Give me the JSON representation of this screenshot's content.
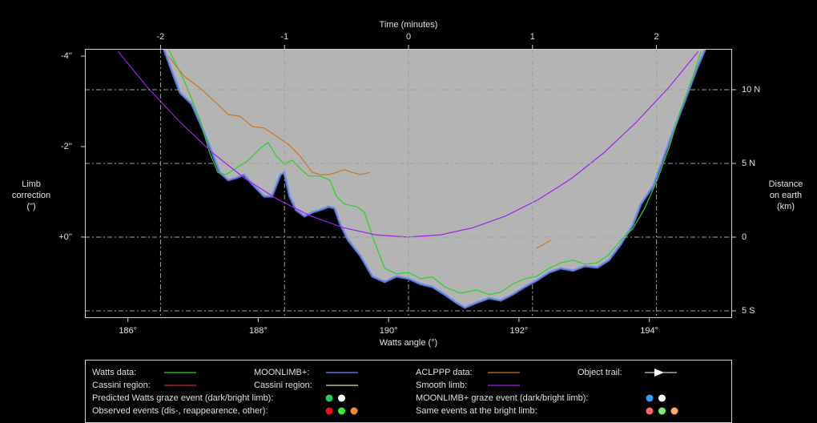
{
  "chart_data": {
    "type": "line",
    "xlabel": "Watts angle (°)",
    "x2label": "Time (minutes)",
    "ylabel": [
      "Limb",
      "correction",
      "(\")"
    ],
    "y2label": [
      "Distance",
      "on earth",
      "(km)"
    ],
    "xlim": [
      185.34,
      195.27
    ],
    "xticks": [
      {
        "value": 186,
        "label": "186°"
      },
      {
        "value": 188,
        "label": "188°"
      },
      {
        "value": 190,
        "label": "190°"
      },
      {
        "value": 192,
        "label": "192°"
      },
      {
        "value": 194,
        "label": "194°"
      }
    ],
    "x2lim": [
      -2.61,
      2.61
    ],
    "x2ticks": [
      -2,
      -1,
      0,
      1,
      2
    ],
    "ylim": [
      1.79,
      -4.16
    ],
    "yticks": [
      {
        "value": -4,
        "label": "-4''"
      },
      {
        "value": -2,
        "label": "-2''"
      },
      {
        "value": 0,
        "label": "+0''"
      }
    ],
    "y2lim": [
      -5.49,
      12.77
    ],
    "y2ticks": [
      {
        "value": 10,
        "label": "10 N"
      },
      {
        "value": 5,
        "label": "5 N"
      },
      0,
      {
        "value": -5,
        "label": "5 S"
      }
    ],
    "grid": true,
    "series": [
      {
        "name": "Watts data:",
        "color": "#28d228",
        "x": [
          186.62,
          186.86,
          187.11,
          187.25,
          187.38,
          187.5,
          187.66,
          187.85,
          188.03,
          188.15,
          188.28,
          188.4,
          188.52,
          188.64,
          188.77,
          188.95,
          189.1,
          189.2,
          189.32,
          189.51,
          189.63,
          189.75,
          189.94,
          190.12,
          190.31,
          190.49,
          190.67,
          190.86,
          191.1,
          191.35,
          191.54,
          191.72,
          191.9,
          192.09,
          192.27,
          192.46,
          192.64,
          192.83,
          193.01,
          193.2,
          193.38,
          193.56,
          193.75,
          193.93,
          194.12,
          194.3,
          194.49,
          194.67,
          194.79
        ],
        "values": [
          -4.16,
          -3.47,
          -2.58,
          -1.88,
          -1.43,
          -1.38,
          -1.52,
          -1.7,
          -1.96,
          -2.09,
          -1.79,
          -1.61,
          -1.7,
          -1.52,
          -1.35,
          -1.35,
          -1.26,
          -0.9,
          -0.73,
          -0.67,
          -0.55,
          -0.02,
          0.69,
          0.81,
          0.78,
          0.92,
          0.88,
          1.1,
          1.24,
          1.17,
          1.27,
          1.22,
          1.04,
          0.92,
          0.87,
          0.69,
          0.57,
          0.51,
          0.6,
          0.57,
          0.39,
          0.07,
          -0.19,
          -0.64,
          -1.26,
          -1.96,
          -2.85,
          -3.56,
          -4.09
        ]
      },
      {
        "name": "MOONLIMB+:",
        "color": "#6a8cff",
        "fill": "#b4b4b4",
        "x": [
          186.55,
          186.68,
          186.8,
          186.98,
          187.17,
          187.29,
          187.41,
          187.54,
          187.66,
          187.78,
          187.91,
          188.09,
          188.21,
          188.34,
          188.4,
          188.48,
          188.58,
          188.71,
          188.83,
          188.95,
          189.08,
          189.17,
          189.26,
          189.38,
          189.57,
          189.75,
          189.94,
          190.12,
          190.31,
          190.49,
          190.67,
          190.86,
          191.04,
          191.17,
          191.35,
          191.54,
          191.72,
          191.9,
          192.09,
          192.27,
          192.46,
          192.64,
          192.83,
          193.01,
          193.2,
          193.38,
          193.56,
          193.75,
          193.87,
          194.06,
          194.18,
          194.36,
          194.55,
          194.73,
          194.86
        ],
        "values": [
          -4.16,
          -3.65,
          -3.19,
          -2.94,
          -2.32,
          -1.88,
          -1.43,
          -1.26,
          -1.31,
          -1.38,
          -1.17,
          -0.9,
          -0.9,
          -1.38,
          -1.43,
          -0.9,
          -0.6,
          -0.46,
          -0.55,
          -0.6,
          -0.67,
          -0.64,
          -0.28,
          0.07,
          0.42,
          0.87,
          0.99,
          0.87,
          0.92,
          1.04,
          1.1,
          1.27,
          1.45,
          1.56,
          1.45,
          1.35,
          1.4,
          1.27,
          1.1,
          0.96,
          0.78,
          0.69,
          0.74,
          0.64,
          0.67,
          0.51,
          0.16,
          -0.28,
          -0.73,
          -1.13,
          -1.61,
          -2.32,
          -3.03,
          -3.73,
          -4.16
        ]
      },
      {
        "name": "ACLPPP data:",
        "color": "#c87820",
        "x": [
          186.62,
          186.86,
          187.11,
          187.35,
          187.54,
          187.72,
          187.91,
          188.09,
          188.28,
          188.46,
          188.64,
          188.83,
          188.95,
          189.08,
          189.2,
          189.32,
          189.44,
          189.57,
          189.71,
          null,
          192.27,
          192.49
        ],
        "values": [
          -4.0,
          -3.56,
          -3.29,
          -2.97,
          -2.71,
          -2.67,
          -2.44,
          -2.41,
          -2.23,
          -2.05,
          -1.79,
          -1.43,
          -1.38,
          -1.38,
          -1.43,
          -1.49,
          -1.43,
          -1.38,
          -1.43,
          null,
          0.25,
          0.07
        ]
      },
      {
        "name": "Smooth limb:",
        "color": "#a020f0",
        "x": [
          185.85,
          186.3,
          186.8,
          187.3,
          187.8,
          188.3,
          188.8,
          189.3,
          189.8,
          190.3,
          190.8,
          191.3,
          191.8,
          192.3,
          192.8,
          193.3,
          193.8,
          194.3,
          194.75
        ],
        "values": [
          -4.1,
          -3.31,
          -2.54,
          -1.86,
          -1.29,
          -0.83,
          -0.47,
          -0.21,
          -0.05,
          0,
          -0.05,
          -0.21,
          -0.47,
          -0.83,
          -1.29,
          -1.86,
          -2.54,
          -3.31,
          -4.1
        ]
      }
    ],
    "legend": {
      "lines": [
        {
          "label": "Cassini region:",
          "color": "#d02828"
        },
        {
          "label": "Cassini region:",
          "color": "#e0e0b0"
        },
        {
          "label": "Object trail:",
          "color": "#ffffff"
        }
      ],
      "events": [
        {
          "label": "Predicted Watts graze event (dark/bright limb):",
          "colors": [
            "#22cc55",
            "#ffffff"
          ]
        },
        {
          "label": "MOONLIMB+ graze event (dark/bright limb):",
          "colors": [
            "#3399ff",
            "#ffffff"
          ]
        },
        {
          "label": "Observed events (dis-, reappearence, other):",
          "colors": [
            "#ee1111",
            "#33ee33",
            "#ff8833"
          ]
        },
        {
          "label": "Same events at the bright limb:",
          "colors": [
            "#ff6666",
            "#77ee77",
            "#ffaa66"
          ]
        }
      ]
    }
  }
}
